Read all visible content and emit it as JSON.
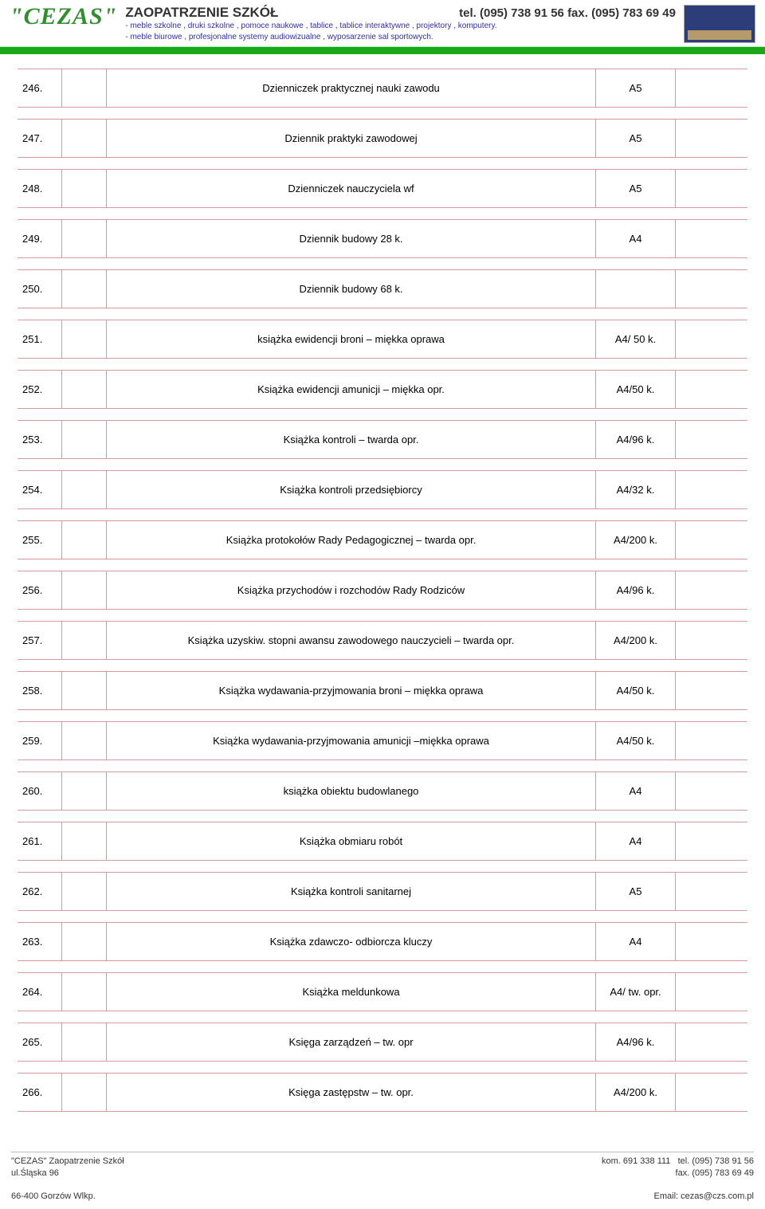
{
  "header": {
    "logo": "\"CEZAS\"",
    "title": "ZAOPATRZENIE SZKÓŁ",
    "contact": "tel. (095) 738 91 56 fax. (095) 783 69 49",
    "sub1": "- meble szkolne , druki szkolne , pomoce naukowe , tablice , tablice interaktywne , projektory , komputery.",
    "sub2": "- meble biurowe , profesjonalne systemy audiowizualne , wyposarzenie sal sportowych."
  },
  "rows": [
    {
      "num": "246.",
      "desc": "Dzienniczek praktycznej nauki zawodu",
      "fmt": "A5"
    },
    {
      "num": "247.",
      "desc": "Dziennik praktyki zawodowej",
      "fmt": "A5"
    },
    {
      "num": "248.",
      "desc": "Dzienniczek nauczyciela wf",
      "fmt": "A5"
    },
    {
      "num": "249.",
      "desc": "Dziennik budowy 28 k.",
      "fmt": "A4"
    },
    {
      "num": "250.",
      "desc": "Dziennik budowy  68 k.",
      "fmt": ""
    },
    {
      "num": "251.",
      "desc": "książka ewidencji broni – miękka oprawa",
      "fmt": "A4/ 50 k."
    },
    {
      "num": "252.",
      "desc": "Książka ewidencji amunicji – miękka opr.",
      "fmt": "A4/50 k."
    },
    {
      "num": "253.",
      "desc": "Książka kontroli – twarda opr.",
      "fmt": "A4/96 k."
    },
    {
      "num": "254.",
      "desc": "Książka kontroli przedsiębiorcy",
      "fmt": "A4/32 k."
    },
    {
      "num": "255.",
      "desc": "Książka protokołów Rady Pedagogicznej – twarda opr.",
      "fmt": "A4/200 k."
    },
    {
      "num": "256.",
      "desc": "Książka  przychodów i  rozchodów Rady Rodziców",
      "fmt": "A4/96 k."
    },
    {
      "num": "257.",
      "desc": "Książka uzyskiw. stopni awansu zawodowego nauczycieli – twarda opr.",
      "fmt": "A4/200 k."
    },
    {
      "num": "258.",
      "desc": "Książka wydawania-przyjmowania broni – miękka oprawa",
      "fmt": "A4/50 k."
    },
    {
      "num": "259.",
      "desc": "Książka wydawania-przyjmowania amunicji –miękka oprawa",
      "fmt": "A4/50 k."
    },
    {
      "num": "260.",
      "desc": "książka obiektu budowlanego",
      "fmt": "A4"
    },
    {
      "num": "261.",
      "desc": "Książka obmiaru robót",
      "fmt": "A4"
    },
    {
      "num": "262.",
      "desc": "Książka kontroli sanitarnej",
      "fmt": "A5"
    },
    {
      "num": "263.",
      "desc": "Książka zdawczo- odbiorcza kluczy",
      "fmt": "A4"
    },
    {
      "num": "264.",
      "desc": "Książka meldunkowa",
      "fmt": "A4/ tw. opr."
    },
    {
      "num": "265.",
      "desc": "Księga zarządzeń – tw. opr",
      "fmt": "A4/96 k."
    },
    {
      "num": "266.",
      "desc": "Księga zastępstw – tw. opr.",
      "fmt": "A4/200 k."
    }
  ],
  "footer": {
    "company": "\"CEZAS\" Zaopatrzenie Szkół",
    "street": "ul.Śląska 96",
    "city": "66-400 Gorzów Wlkp.",
    "kom": "kom. 691 338 111",
    "tel": "tel. (095) 738 91 56",
    "fax": "fax. (095) 783 69 49",
    "email": "Email: cezas@czs.com.pl"
  },
  "style": {
    "row_border_color": "#d49a9a",
    "green_bar_color": "#18a818",
    "logo_color": "#2f8f2f",
    "subline_color": "#2e2ea8",
    "font_size_body": 13,
    "col_widths": {
      "num": 56,
      "gap": 56,
      "fmt": 100,
      "end": 90
    }
  }
}
